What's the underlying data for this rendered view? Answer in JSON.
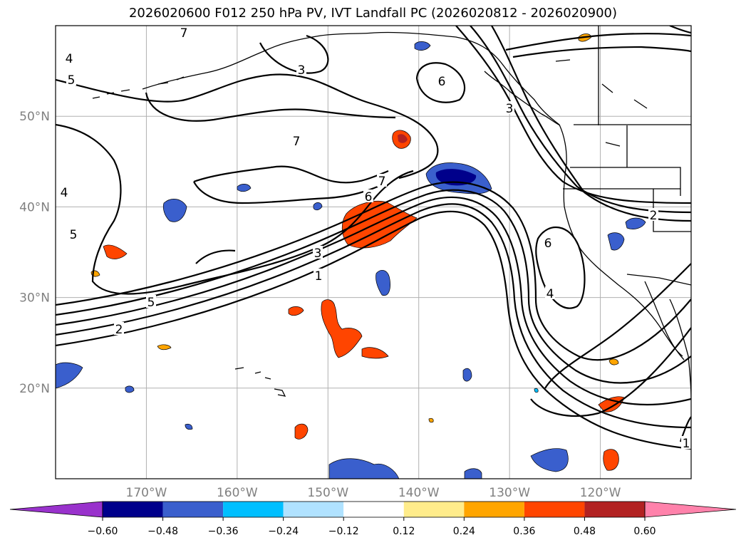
{
  "title": "2026020600 F012 250 hPa PV, IVT Landfall PC (2026020812 - 2026020900)",
  "map": {
    "lat_ticks": [
      {
        "value": 50,
        "label": "50°N"
      },
      {
        "value": 40,
        "label": "40°N"
      },
      {
        "value": 30,
        "label": "30°N"
      },
      {
        "value": 20,
        "label": "20°N"
      }
    ],
    "lon_ticks": [
      {
        "value": -170,
        "label": "170°W"
      },
      {
        "value": -160,
        "label": "160°W"
      },
      {
        "value": -150,
        "label": "150°W"
      },
      {
        "value": -140,
        "label": "140°W"
      },
      {
        "value": -130,
        "label": "130°W"
      },
      {
        "value": -120,
        "label": "120°W"
      }
    ],
    "extent": {
      "lon_min": -180,
      "lon_max": -110,
      "lat_min": 10,
      "lat_max": 60
    },
    "grid": true,
    "contour_labels": [
      "7",
      "4",
      "5",
      "3",
      "6",
      "7",
      "3",
      "7",
      "6",
      "6",
      "3",
      "1",
      "5",
      "2",
      "4",
      "2",
      "1",
      "5",
      "4"
    ]
  },
  "colorbar": {
    "ticks": [
      "−0.60",
      "−0.48",
      "−0.36",
      "−0.24",
      "−0.12",
      "0.12",
      "0.24",
      "0.36",
      "0.48",
      "0.60"
    ],
    "colors": [
      "#9932cc",
      "#00008b",
      "#3a5fcd",
      "#00bfff",
      "#b0e2ff",
      "#ffffff",
      "#ffec8b",
      "#ffa500",
      "#ff4500",
      "#b22222",
      "#ff82ab"
    ]
  }
}
